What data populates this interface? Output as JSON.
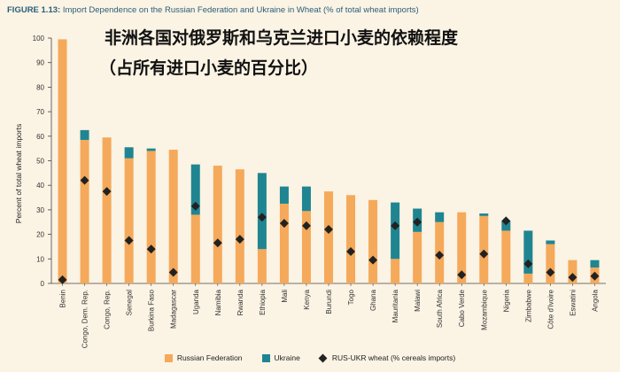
{
  "figure": {
    "number": "FIGURE 1.13:",
    "title": "Import Dependence on the Russian Federation and Ukraine in Wheat (% of total wheat imports)"
  },
  "overlay": {
    "line1": "非洲各国对俄罗斯和乌克兰进口小麦的依赖程度",
    "line2": "（占所有进口小麦的百分比）"
  },
  "colors": {
    "russia": "#f5a95a",
    "ukraine": "#1f8591",
    "marker": "#222222",
    "background": "#fbf3e4",
    "title": "#2a5f7a"
  },
  "chart_data": {
    "type": "bar",
    "stacked": true,
    "title": "Import Dependence on the Russian Federation and Ukraine in Wheat (% of total wheat imports)",
    "ylabel": "Percent of total wheat imports",
    "xlabel": "",
    "ylim": [
      0,
      100
    ],
    "yticks": [
      0,
      10,
      20,
      30,
      40,
      50,
      60,
      70,
      80,
      90,
      100
    ],
    "grid": false,
    "legend_position": "bottom",
    "categories": [
      "Benin",
      "Congo, Dem. Rep.",
      "Congo, Rep.",
      "Senegal",
      "Burkina Faso",
      "Madagascar",
      "Uganda",
      "Namibia",
      "Rwanda",
      "Ethiopia",
      "Mali",
      "Kenya",
      "Burundi",
      "Togo",
      "Ghana",
      "Mauritania",
      "Malawi",
      "South Africa",
      "Cabo Verde",
      "Mozambique",
      "Nigeria",
      "Zimbabwe",
      "Côte d'Ivoire",
      "Eswatini",
      "Angola"
    ],
    "series": [
      {
        "name": "Russian Federation",
        "type": "bar",
        "color": "#f5a95a",
        "values": [
          99.5,
          58.5,
          59.5,
          51,
          54,
          54.5,
          28,
          48,
          46.5,
          14,
          32.5,
          29.5,
          37.5,
          36,
          34,
          10,
          21,
          25,
          29,
          27.5,
          21.5,
          4,
          16,
          9.5,
          6.5
        ]
      },
      {
        "name": "Ukraine",
        "type": "bar",
        "color": "#1f8591",
        "values": [
          0,
          4,
          0,
          4.5,
          1,
          0,
          20.5,
          0,
          0,
          31,
          7,
          10,
          0,
          0,
          0,
          23,
          9.5,
          4,
          0,
          1,
          4,
          17.5,
          1.5,
          0,
          3
        ]
      },
      {
        "name": "RUS-UKR wheat (% cereals imports)",
        "type": "marker",
        "color": "#222222",
        "values": [
          1.5,
          42,
          37.5,
          17.5,
          14,
          4.5,
          31.5,
          16.5,
          18,
          27,
          24.5,
          23.5,
          22,
          13,
          9.5,
          23.5,
          25,
          11.5,
          3.5,
          12,
          25.5,
          8,
          4.5,
          2.5,
          3
        ]
      }
    ]
  }
}
